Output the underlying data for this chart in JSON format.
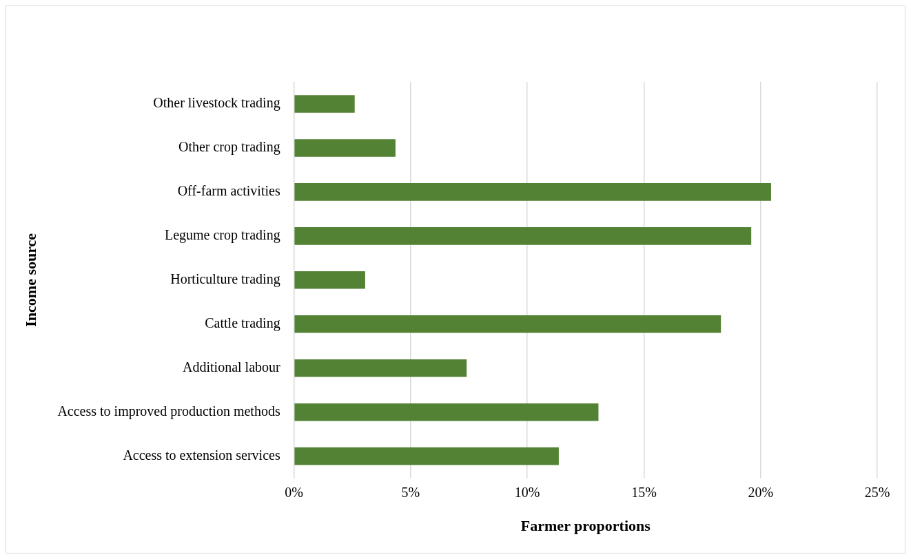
{
  "chart_data": {
    "type": "bar",
    "orientation": "horizontal",
    "xlabel": "Farmer proportions",
    "ylabel": "Income source",
    "categories": [
      "Other livestock trading",
      "Other crop trading",
      "Off-farm activities",
      "Legume crop trading",
      "Horticulture trading",
      "Cattle trading",
      "Additional labour",
      "Access to improved production methods",
      "Access to extension services"
    ],
    "values": [
      2.6,
      4.35,
      20.45,
      19.6,
      3.05,
      18.3,
      7.4,
      13.05,
      11.35
    ],
    "color": "#548235",
    "xlim": [
      0,
      25
    ],
    "xticks": [
      {
        "value": 0,
        "label": "0%"
      },
      {
        "value": 5,
        "label": "5%"
      },
      {
        "value": 10,
        "label": "10%"
      },
      {
        "value": 15,
        "label": "15%"
      },
      {
        "value": 20,
        "label": "20%"
      },
      {
        "value": 25,
        "label": "25%"
      }
    ],
    "grid": "x",
    "legend": false
  }
}
